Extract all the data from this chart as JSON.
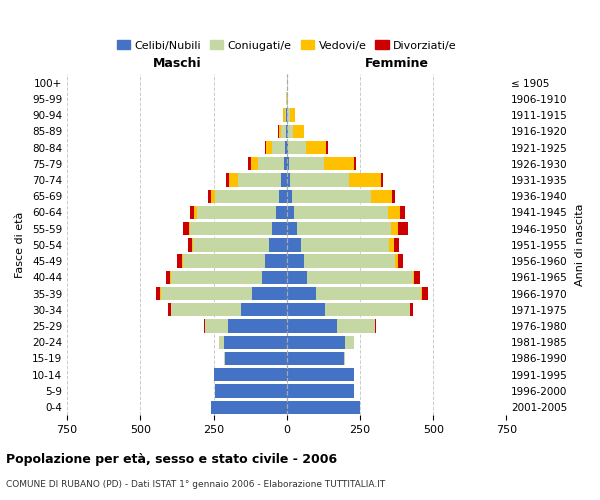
{
  "age_groups": [
    "0-4",
    "5-9",
    "10-14",
    "15-19",
    "20-24",
    "25-29",
    "30-34",
    "35-39",
    "40-44",
    "45-49",
    "50-54",
    "55-59",
    "60-64",
    "65-69",
    "70-74",
    "75-79",
    "80-84",
    "85-89",
    "90-94",
    "95-99",
    "100+"
  ],
  "birth_years": [
    "2001-2005",
    "1996-2000",
    "1991-1995",
    "1986-1990",
    "1981-1985",
    "1976-1980",
    "1971-1975",
    "1966-1970",
    "1961-1965",
    "1956-1960",
    "1951-1955",
    "1946-1950",
    "1941-1945",
    "1936-1940",
    "1931-1935",
    "1926-1930",
    "1921-1925",
    "1916-1920",
    "1911-1915",
    "1906-1910",
    "≤ 1905"
  ],
  "male": {
    "celibe": [
      260,
      245,
      250,
      210,
      215,
      200,
      155,
      120,
      85,
      75,
      60,
      50,
      35,
      25,
      18,
      8,
      5,
      3,
      2,
      0,
      0
    ],
    "coniugato": [
      0,
      0,
      0,
      3,
      15,
      80,
      240,
      310,
      310,
      280,
      260,
      280,
      270,
      220,
      150,
      90,
      45,
      15,
      5,
      1,
      0
    ],
    "vedovo": [
      0,
      0,
      0,
      0,
      0,
      0,
      1,
      2,
      2,
      3,
      5,
      5,
      10,
      15,
      30,
      25,
      20,
      10,
      5,
      1,
      0
    ],
    "divorziato": [
      0,
      0,
      0,
      0,
      0,
      3,
      8,
      15,
      15,
      15,
      12,
      20,
      15,
      10,
      8,
      8,
      5,
      2,
      0,
      0,
      0
    ]
  },
  "female": {
    "nubile": [
      250,
      230,
      230,
      195,
      200,
      170,
      130,
      100,
      70,
      60,
      50,
      35,
      25,
      18,
      12,
      8,
      5,
      3,
      2,
      0,
      0
    ],
    "coniugata": [
      0,
      0,
      0,
      5,
      30,
      130,
      290,
      360,
      360,
      310,
      300,
      320,
      320,
      270,
      200,
      120,
      60,
      20,
      10,
      2,
      0
    ],
    "vedova": [
      0,
      0,
      0,
      0,
      0,
      1,
      2,
      3,
      5,
      10,
      15,
      25,
      40,
      70,
      110,
      100,
      70,
      35,
      15,
      3,
      1
    ],
    "divorziata": [
      0,
      0,
      0,
      0,
      0,
      3,
      10,
      20,
      20,
      18,
      18,
      35,
      18,
      10,
      8,
      8,
      5,
      2,
      0,
      0,
      0
    ]
  },
  "colors": {
    "celibe": "#4472c4",
    "coniugato": "#c5d8a4",
    "vedovo": "#ffc000",
    "divorziato": "#cc0000"
  },
  "xlim": 750,
  "title": "Popolazione per età, sesso e stato civile - 2006",
  "subtitle": "COMUNE DI RUBANO (PD) - Dati ISTAT 1° gennaio 2006 - Elaborazione TUTTITALIA.IT",
  "ylabel_left": "Fasce di età",
  "ylabel_right": "Anni di nascita",
  "xlabel_left": "Maschi",
  "xlabel_right": "Femmine",
  "legend_labels": [
    "Celibi/Nubili",
    "Coniugati/e",
    "Vedovi/e",
    "Divorziati/e"
  ],
  "background_color": "#ffffff",
  "grid_color": "#cccccc"
}
